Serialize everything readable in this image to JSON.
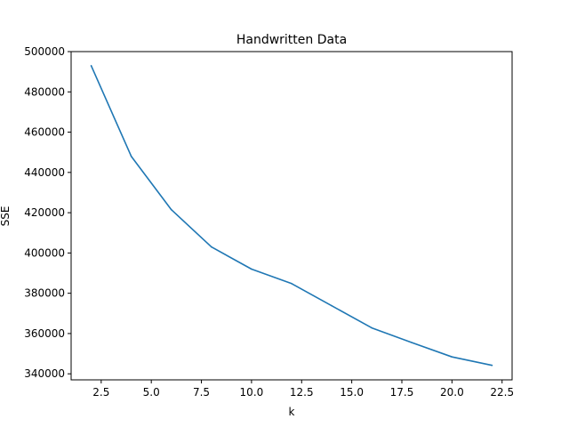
{
  "chart_data": {
    "type": "line",
    "title": "Handwritten Data",
    "xlabel": "k",
    "ylabel": "SSE",
    "xlim": [
      1.0,
      23.0
    ],
    "ylim": [
      337000,
      500000
    ],
    "xticks": [
      2.5,
      5.0,
      7.5,
      10.0,
      12.5,
      15.0,
      17.5,
      20.0,
      22.5
    ],
    "xtick_labels": [
      "2.5",
      "5.0",
      "7.5",
      "10.0",
      "12.5",
      "15.0",
      "17.5",
      "20.0",
      "22.5"
    ],
    "yticks": [
      340000,
      360000,
      380000,
      400000,
      420000,
      440000,
      460000,
      480000,
      500000
    ],
    "ytick_labels": [
      "340000",
      "360000",
      "380000",
      "400000",
      "420000",
      "440000",
      "460000",
      "480000",
      "500000"
    ],
    "grid": false,
    "series": [
      {
        "color": "#1f77b4",
        "x": [
          2,
          4,
          6,
          8,
          10,
          12,
          14,
          16,
          18,
          20,
          22
        ],
        "y": [
          493000,
          448000,
          421500,
          403000,
          392000,
          384800,
          373800,
          362800,
          355500,
          348400,
          344200
        ]
      }
    ]
  }
}
